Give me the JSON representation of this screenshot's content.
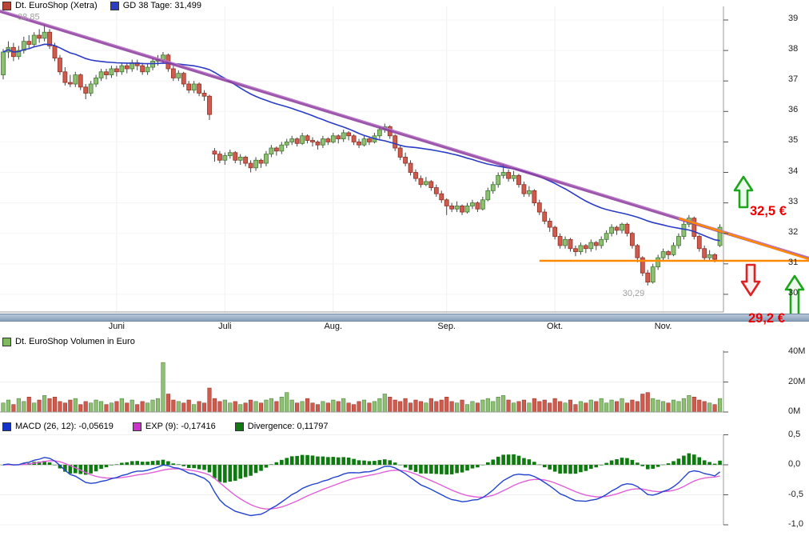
{
  "colors": {
    "series_legend": "#bb4437",
    "ma_legend": "#2b3cc4",
    "volume_legend": "#7fba5f",
    "macd_legend": "#1133cc",
    "exp_legend": "#cc33cc",
    "divergence_legend": "#0f7a0f",
    "up": "#8fbf72",
    "up_border": "#3f7a33",
    "down": "#cf5b4e",
    "down_border": "#8f2f24",
    "wick": "#444444",
    "ma_line": "#2b3cc4",
    "trend_line": "#8b3a9e",
    "orange_line": "#ff8a00",
    "macd_line": "#2244cc",
    "exp_line": "#e060d8",
    "divergence_bar": "#0f7a0f",
    "alert_red": "#ee0000",
    "arrow_green": "#1ea51e",
    "arrow_red": "#dd2222"
  },
  "header": {
    "series_legend": {
      "label": "Dt. EuroShop (Xetra)"
    },
    "ma_legend": {
      "label": "GD 38 Tage: 31,499"
    }
  },
  "volume_panel": {
    "legend": "Dt. EuroShop Volumen in Euro"
  },
  "macd_panel": {
    "legends": [
      {
        "label": "MACD (26, 12): -0,05619"
      },
      {
        "label": "EXP (9): -0,17416"
      },
      {
        "label": "Divergence: 0,11797"
      }
    ]
  },
  "annotations": {
    "high_label": "38,85",
    "low_label": "30,29",
    "target_up": "32,5 €",
    "target_down": "29,2 €"
  },
  "chart_data": [
    {
      "type": "candlestick",
      "title": "Dt. EuroShop (Xetra)",
      "ylim": [
        29.4,
        39.5
      ],
      "price_ticks": [
        39,
        38,
        37,
        36,
        35,
        34,
        33,
        32,
        31,
        30
      ],
      "months": [
        {
          "label": "Juni",
          "day": 22
        },
        {
          "label": "Juli",
          "day": 43
        },
        {
          "label": "Aug.",
          "day": 64
        },
        {
          "label": "Sep.",
          "day": 86
        },
        {
          "label": "Okt.",
          "day": 107
        },
        {
          "label": "Nov.",
          "day": 128
        }
      ],
      "high_annotation": {
        "label": "38,85",
        "day": 8,
        "price": 38.85
      },
      "low_annotation": {
        "label": "30,29",
        "day": 125,
        "price": 30.29
      },
      "moving_average": {
        "name": "GD 38 Tage",
        "period": 38,
        "last_value_text": "31,499"
      },
      "trendline": {
        "price_left": 39.29,
        "price_right": 31.18
      },
      "support_line": {
        "price": 31.1,
        "from_day": 104
      },
      "alert_line": {
        "from_day": 131,
        "from_price": 32.5,
        "price_right": 31.15
      },
      "signals": [
        {
          "type": "buy-breakout",
          "label": "32,5 €"
        },
        {
          "type": "sell-breakdown",
          "label": ""
        },
        {
          "type": "buy-target",
          "label": "29,2 €"
        }
      ],
      "candles": [
        [
          37.2,
          38.05,
          37.05,
          37.95
        ],
        [
          37.95,
          38.3,
          37.75,
          38.1
        ],
        [
          38.1,
          38.25,
          37.65,
          37.8
        ],
        [
          37.8,
          38.15,
          37.7,
          38.0
        ],
        [
          38.0,
          38.45,
          37.9,
          38.3
        ],
        [
          38.3,
          38.5,
          38.05,
          38.2
        ],
        [
          38.2,
          38.6,
          38.1,
          38.5
        ],
        [
          38.5,
          38.7,
          38.25,
          38.4
        ],
        [
          38.4,
          38.85,
          38.3,
          38.6
        ],
        [
          38.6,
          38.7,
          38.05,
          38.15
        ],
        [
          38.15,
          38.25,
          37.65,
          37.75
        ],
        [
          37.75,
          37.85,
          37.2,
          37.3
        ],
        [
          37.3,
          37.45,
          36.85,
          36.95
        ],
        [
          36.95,
          37.2,
          36.8,
          36.9
        ],
        [
          36.9,
          37.3,
          36.8,
          37.2
        ],
        [
          37.2,
          37.25,
          36.7,
          36.8
        ],
        [
          36.8,
          36.9,
          36.4,
          36.6
        ],
        [
          36.6,
          37.0,
          36.5,
          36.9
        ],
        [
          36.9,
          37.2,
          36.8,
          37.1
        ],
        [
          37.1,
          37.4,
          37.0,
          37.3
        ],
        [
          37.3,
          37.4,
          37.05,
          37.2
        ],
        [
          37.2,
          37.5,
          37.1,
          37.4
        ],
        [
          37.4,
          37.5,
          37.15,
          37.3
        ],
        [
          37.3,
          37.6,
          37.2,
          37.5
        ],
        [
          37.5,
          37.6,
          37.25,
          37.4
        ],
        [
          37.4,
          37.7,
          37.3,
          37.6
        ],
        [
          37.6,
          37.7,
          37.35,
          37.5
        ],
        [
          37.5,
          37.6,
          37.2,
          37.3
        ],
        [
          37.3,
          37.55,
          37.2,
          37.45
        ],
        [
          37.45,
          37.75,
          37.35,
          37.65
        ],
        [
          37.65,
          37.85,
          37.5,
          37.7
        ],
        [
          37.7,
          37.95,
          37.6,
          37.85
        ],
        [
          37.85,
          37.9,
          37.3,
          37.4
        ],
        [
          37.4,
          37.5,
          37.0,
          37.1
        ],
        [
          37.1,
          37.35,
          37.0,
          37.25
        ],
        [
          37.25,
          37.3,
          36.8,
          36.9
        ],
        [
          36.9,
          37.0,
          36.6,
          36.7
        ],
        [
          36.7,
          37.0,
          36.6,
          36.9
        ],
        [
          36.9,
          36.95,
          36.5,
          36.6
        ],
        [
          36.6,
          36.7,
          36.35,
          36.5
        ],
        [
          36.5,
          36.55,
          35.72,
          35.9
        ],
        [
          34.7,
          34.8,
          34.35,
          34.6
        ],
        [
          34.6,
          34.7,
          34.3,
          34.4
        ],
        [
          34.4,
          34.65,
          34.25,
          34.55
        ],
        [
          34.55,
          34.75,
          34.45,
          34.65
        ],
        [
          34.65,
          34.7,
          34.3,
          34.4
        ],
        [
          34.4,
          34.6,
          34.25,
          34.5
        ],
        [
          34.5,
          34.55,
          34.2,
          34.3
        ],
        [
          34.3,
          34.4,
          34.0,
          34.15
        ],
        [
          34.15,
          34.5,
          34.05,
          34.4
        ],
        [
          34.4,
          34.45,
          34.15,
          34.3
        ],
        [
          34.3,
          34.7,
          34.2,
          34.6
        ],
        [
          34.6,
          34.9,
          34.5,
          34.8
        ],
        [
          34.8,
          34.85,
          34.55,
          34.7
        ],
        [
          34.7,
          35.0,
          34.6,
          34.9
        ],
        [
          34.9,
          35.1,
          34.8,
          35.0
        ],
        [
          35.0,
          35.2,
          34.9,
          35.1
        ],
        [
          35.1,
          35.15,
          34.85,
          34.95
        ],
        [
          34.95,
          35.3,
          34.9,
          35.2
        ],
        [
          35.2,
          35.25,
          34.95,
          35.05
        ],
        [
          35.05,
          35.15,
          34.85,
          35.0
        ],
        [
          35.0,
          35.05,
          34.75,
          34.9
        ],
        [
          34.9,
          35.2,
          34.8,
          35.1
        ],
        [
          35.1,
          35.15,
          34.9,
          35.0
        ],
        [
          35.0,
          35.3,
          34.95,
          35.2
        ],
        [
          35.2,
          35.25,
          34.95,
          35.1
        ],
        [
          35.1,
          35.4,
          35.0,
          35.3
        ],
        [
          35.3,
          35.35,
          35.05,
          35.2
        ],
        [
          35.2,
          35.25,
          34.9,
          35.0
        ],
        [
          35.0,
          35.1,
          34.8,
          34.9
        ],
        [
          34.9,
          35.2,
          34.85,
          35.1
        ],
        [
          35.1,
          35.15,
          34.9,
          35.0
        ],
        [
          35.0,
          35.3,
          34.95,
          35.2
        ],
        [
          35.2,
          35.5,
          35.1,
          35.4
        ],
        [
          35.4,
          35.6,
          35.3,
          35.5
        ],
        [
          35.5,
          35.55,
          35.1,
          35.2
        ],
        [
          35.2,
          35.25,
          34.7,
          34.8
        ],
        [
          34.8,
          34.9,
          34.4,
          34.5
        ],
        [
          34.5,
          34.65,
          34.2,
          34.3
        ],
        [
          34.3,
          34.4,
          33.9,
          34.0
        ],
        [
          34.0,
          34.1,
          33.7,
          33.8
        ],
        [
          33.8,
          33.9,
          33.5,
          33.6
        ],
        [
          33.6,
          33.85,
          33.55,
          33.7
        ],
        [
          33.7,
          33.75,
          33.4,
          33.5
        ],
        [
          33.5,
          33.6,
          33.2,
          33.3
        ],
        [
          33.3,
          33.4,
          33.0,
          33.1
        ],
        [
          33.1,
          33.15,
          32.6,
          32.9
        ],
        [
          32.9,
          33.0,
          32.7,
          32.8
        ],
        [
          32.8,
          33.05,
          32.7,
          32.9
        ],
        [
          32.9,
          32.95,
          32.6,
          32.7
        ],
        [
          32.7,
          33.0,
          32.65,
          32.9
        ],
        [
          32.9,
          33.1,
          32.8,
          33.0
        ],
        [
          33.0,
          33.05,
          32.7,
          32.8
        ],
        [
          32.8,
          33.2,
          32.75,
          33.1
        ],
        [
          33.1,
          33.5,
          33.05,
          33.4
        ],
        [
          33.4,
          33.7,
          33.3,
          33.6
        ],
        [
          33.6,
          34.0,
          33.5,
          33.9
        ],
        [
          33.9,
          34.3,
          33.8,
          34.0
        ],
        [
          34.0,
          34.1,
          33.7,
          33.8
        ],
        [
          33.8,
          34.05,
          33.7,
          33.9
        ],
        [
          33.9,
          33.95,
          33.5,
          33.6
        ],
        [
          33.6,
          33.7,
          33.2,
          33.3
        ],
        [
          33.3,
          33.55,
          33.2,
          33.4
        ],
        [
          33.4,
          33.45,
          32.9,
          33.0
        ],
        [
          33.0,
          33.1,
          32.6,
          32.7
        ],
        [
          32.7,
          32.8,
          32.3,
          32.4
        ],
        [
          32.4,
          32.5,
          32.05,
          32.2
        ],
        [
          32.2,
          32.25,
          31.8,
          31.9
        ],
        [
          31.9,
          32.0,
          31.5,
          31.6
        ],
        [
          31.6,
          31.9,
          31.5,
          31.8
        ],
        [
          31.8,
          31.85,
          31.4,
          31.5
        ],
        [
          31.5,
          31.6,
          31.25,
          31.4
        ],
        [
          31.4,
          31.7,
          31.3,
          31.6
        ],
        [
          31.6,
          31.65,
          31.35,
          31.5
        ],
        [
          31.5,
          31.8,
          31.4,
          31.7
        ],
        [
          31.7,
          31.75,
          31.45,
          31.6
        ],
        [
          31.6,
          31.9,
          31.5,
          31.8
        ],
        [
          31.8,
          32.1,
          31.7,
          32.0
        ],
        [
          32.0,
          32.3,
          31.9,
          32.2
        ],
        [
          32.2,
          32.25,
          31.95,
          32.1
        ],
        [
          32.1,
          32.35,
          32.0,
          32.3
        ],
        [
          32.3,
          32.35,
          31.9,
          32.0
        ],
        [
          32.0,
          32.05,
          31.5,
          31.6
        ],
        [
          31.6,
          31.65,
          31.05,
          31.2
        ],
        [
          31.2,
          31.25,
          30.6,
          30.7
        ],
        [
          30.7,
          30.8,
          30.29,
          30.4
        ],
        [
          30.4,
          31.0,
          30.35,
          30.9
        ],
        [
          30.9,
          31.3,
          30.8,
          31.2
        ],
        [
          31.2,
          31.5,
          31.1,
          31.4
        ],
        [
          31.4,
          31.45,
          31.15,
          31.3
        ],
        [
          31.3,
          31.7,
          31.25,
          31.6
        ],
        [
          31.6,
          32.0,
          31.5,
          31.9
        ],
        [
          31.9,
          32.4,
          31.8,
          32.3
        ],
        [
          32.3,
          32.6,
          32.2,
          32.5
        ],
        [
          32.5,
          32.55,
          31.8,
          31.9
        ],
        [
          31.9,
          31.95,
          31.4,
          31.5
        ],
        [
          31.5,
          31.6,
          31.1,
          31.2
        ],
        [
          31.2,
          31.45,
          31.1,
          31.3
        ],
        [
          31.3,
          31.35,
          31.05,
          31.15
        ],
        [
          31.6,
          32.3,
          31.55,
          32.2
        ]
      ]
    },
    {
      "type": "bar",
      "title": "Dt. EuroShop Volumen in Euro",
      "ylim_millions": [
        0,
        40
      ],
      "ticks": [
        {
          "label": "40M",
          "value": 40
        },
        {
          "label": "20M",
          "value": 20
        },
        {
          "label": "0M",
          "value": 0
        }
      ],
      "values_millions": [
        6,
        8,
        5,
        9,
        7,
        10,
        6,
        8,
        11,
        9,
        10,
        7,
        6,
        8,
        9,
        5,
        7,
        6,
        8,
        7,
        5,
        6,
        7,
        9,
        6,
        8,
        5,
        7,
        6,
        8,
        9,
        33,
        12,
        8,
        7,
        6,
        8,
        5,
        7,
        6,
        16,
        9,
        7,
        8,
        6,
        7,
        5,
        6,
        8,
        7,
        6,
        8,
        9,
        7,
        10,
        13,
        8,
        6,
        7,
        9,
        6,
        5,
        7,
        6,
        8,
        7,
        9,
        6,
        5,
        7,
        8,
        6,
        7,
        9,
        12,
        10,
        8,
        7,
        9,
        6,
        8,
        7,
        6,
        9,
        7,
        8,
        10,
        7,
        6,
        8,
        5,
        7,
        6,
        8,
        9,
        7,
        10,
        11,
        8,
        6,
        7,
        8,
        6,
        9,
        7,
        8,
        6,
        9,
        7,
        6,
        8,
        5,
        7,
        6,
        8,
        7,
        9,
        6,
        8,
        7,
        9,
        6,
        8,
        7,
        12,
        13,
        9,
        8,
        7,
        6,
        8,
        7,
        9,
        11,
        10,
        8,
        7,
        6,
        5,
        9
      ]
    },
    {
      "type": "line",
      "title": "MACD",
      "series_labels": [
        "MACD (26, 12): -0,05619",
        "EXP (9): -0,17416",
        "Divergence: 0,11797"
      ],
      "current_values": {
        "macd": -0.05619,
        "exp": -0.17416,
        "divergence": 0.11797
      },
      "ylim": [
        -1.0,
        0.5
      ],
      "ticks": [
        {
          "label": "0,5",
          "value": 0.5
        },
        {
          "label": "0,0",
          "value": 0.0
        },
        {
          "label": "-0,5",
          "value": -0.5
        },
        {
          "label": "-1,0",
          "value": -1.0
        }
      ],
      "derivation": "MACD = EMA12 - EMA26 of candle closes; EXP = EMA9 of MACD; Divergence = MACD - EXP"
    }
  ]
}
